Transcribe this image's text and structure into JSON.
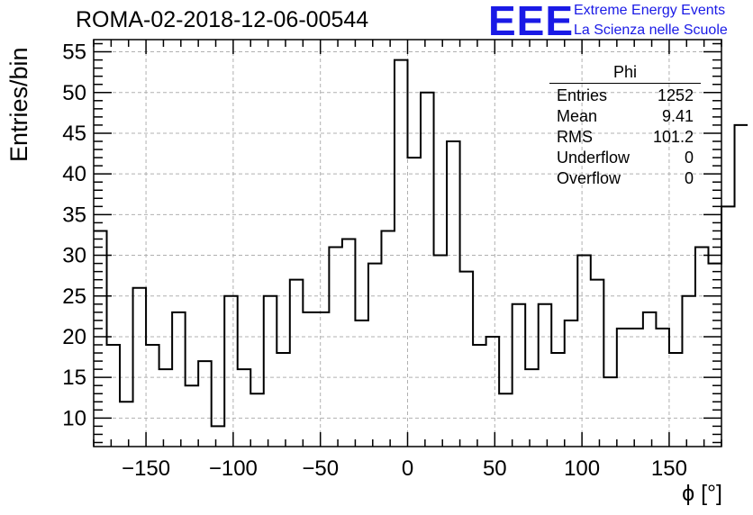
{
  "title": "ROMA-02-2018-12-06-00544",
  "logo": {
    "text": "EEE",
    "line1": "Extreme Energy Events",
    "line2": "La Scienza nelle Scuole",
    "color": "#1a1ae6"
  },
  "stats": {
    "title": "Phi",
    "rows": [
      {
        "label": "Entries",
        "value": "1252"
      },
      {
        "label": "Mean",
        "value": "9.41"
      },
      {
        "label": "RMS",
        "value": "101.2"
      },
      {
        "label": "Underflow",
        "value": "0"
      },
      {
        "label": "Overflow",
        "value": "0"
      }
    ]
  },
  "chart_data": {
    "type": "histogram",
    "title": "ROMA-02-2018-12-06-00544",
    "xlabel": "ϕ [°]",
    "ylabel": "Entries/bin",
    "xlim": [
      -180,
      180
    ],
    "ylim": [
      6.5,
      56.5
    ],
    "bin_edges_start": -180,
    "bin_width": 7.5,
    "values": [
      33,
      19,
      12,
      26,
      19,
      16,
      23,
      14,
      17,
      9,
      25,
      16,
      13,
      25,
      18,
      27,
      23,
      23,
      31,
      32,
      22,
      29,
      33,
      54,
      42,
      50,
      30,
      44,
      28,
      19,
      20,
      13,
      24,
      16,
      24,
      18,
      22,
      30,
      27,
      15,
      21,
      21,
      23,
      21,
      18,
      25,
      31,
      29,
      36,
      46
    ],
    "x_ticks": [
      -150,
      -100,
      -50,
      0,
      50,
      100,
      150
    ],
    "y_ticks": [
      10,
      15,
      20,
      25,
      30,
      35,
      40,
      45,
      50,
      55
    ],
    "grid": true,
    "line_color": "#000000"
  }
}
